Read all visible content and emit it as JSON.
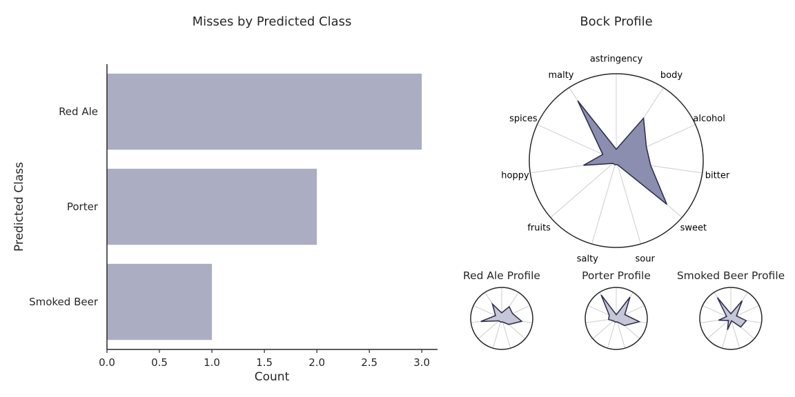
{
  "colors": {
    "bar": "#abaec3",
    "axis": "#262626",
    "radar_fill_main": "#8c8eaf",
    "radar_fill_small": "#c5c7d6",
    "radar_edge": "#2e3050",
    "spoke": "#cccccc"
  },
  "chart_data": [
    {
      "type": "bar",
      "orientation": "horizontal",
      "title": "Misses by Predicted Class",
      "xlabel": "Count",
      "ylabel": "Predicted Class",
      "categories": [
        "Red Ale",
        "Porter",
        "Smoked Beer"
      ],
      "values": [
        3,
        2,
        1
      ],
      "xlim": [
        0,
        3.15
      ],
      "xticks": [
        0.0,
        0.5,
        1.0,
        1.5,
        2.0,
        2.5,
        3.0
      ],
      "xtick_labels": [
        "0.0",
        "0.5",
        "1.0",
        "1.5",
        "2.0",
        "2.5",
        "3.0"
      ],
      "grid": false
    },
    {
      "type": "radar",
      "title": "Bock Profile",
      "axes": [
        "astringency",
        "body",
        "alcohol",
        "bitter",
        "sweet",
        "sour",
        "salty",
        "fruits",
        "hoppy",
        "spices",
        "malty"
      ],
      "values": [
        0.13,
        0.58,
        0.38,
        0.4,
        0.77,
        0.05,
        0.05,
        0.05,
        0.38,
        0.17,
        0.82
      ]
    },
    {
      "type": "radar",
      "title": "Red Ale Profile",
      "axes": [
        "astringency",
        "body",
        "alcohol",
        "bitter",
        "sweet",
        "sour",
        "salty",
        "fruits",
        "hoppy",
        "spices",
        "malty"
      ],
      "values": [
        0.18,
        0.45,
        0.38,
        0.65,
        0.3,
        0.12,
        0.12,
        0.12,
        0.68,
        0.22,
        0.55
      ]
    },
    {
      "type": "radar",
      "title": "Porter Profile",
      "axes": [
        "astringency",
        "body",
        "alcohol",
        "bitter",
        "sweet",
        "sour",
        "salty",
        "fruits",
        "hoppy",
        "spices",
        "malty"
      ],
      "values": [
        0.12,
        0.82,
        0.3,
        0.75,
        0.35,
        0.12,
        0.12,
        0.12,
        0.25,
        0.25,
        0.9
      ]
    },
    {
      "type": "radar",
      "title": "Smoked Beer Profile",
      "axes": [
        "astringency",
        "body",
        "alcohol",
        "bitter",
        "sweet",
        "sour",
        "salty",
        "fruits",
        "hoppy",
        "spices",
        "malty"
      ],
      "values": [
        0.15,
        0.68,
        0.2,
        0.5,
        0.42,
        0.08,
        0.38,
        0.1,
        0.4,
        0.15,
        0.8
      ]
    }
  ]
}
